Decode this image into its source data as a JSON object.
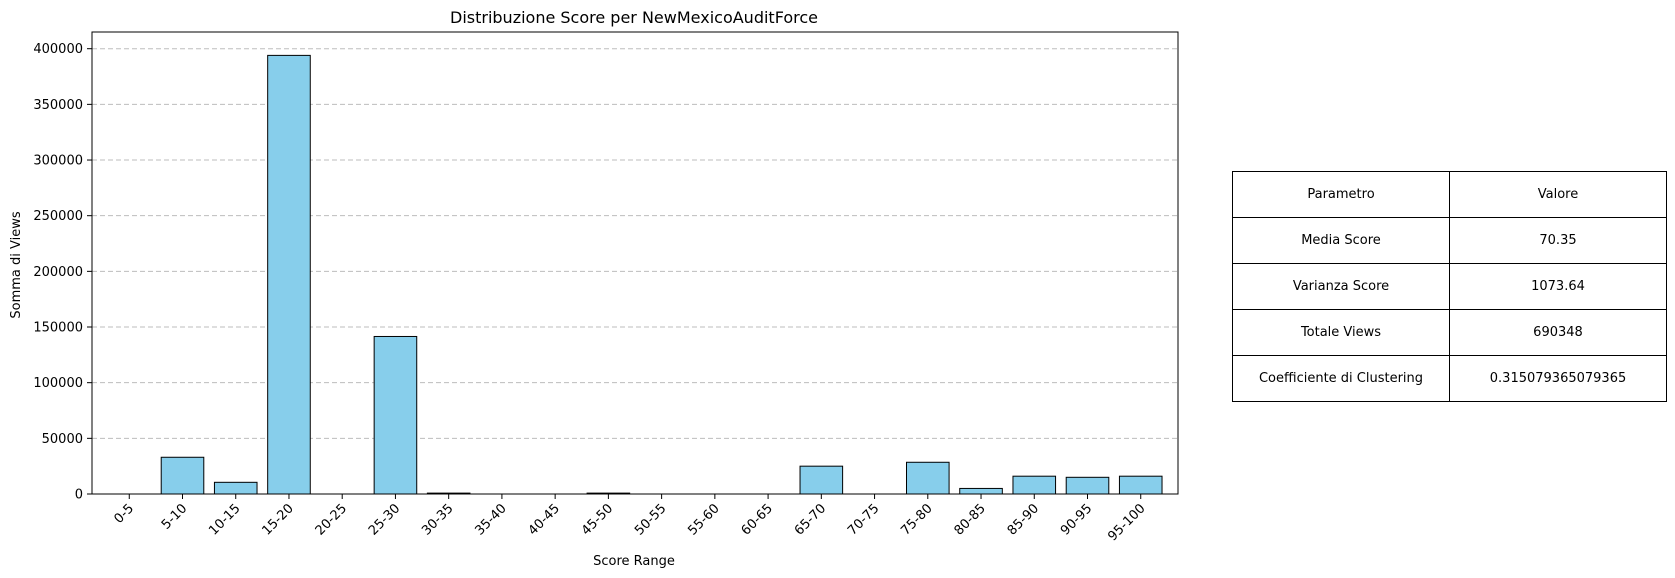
{
  "chart_data": {
    "type": "bar",
    "title": "Distribuzione Score per NewMexicoAuditForce",
    "xlabel": "Score Range",
    "ylabel": "Somma di Views",
    "categories": [
      "0-5",
      "5-10",
      "10-15",
      "15-20",
      "20-25",
      "25-30",
      "30-35",
      "35-40",
      "40-45",
      "45-50",
      "50-55",
      "55-60",
      "60-65",
      "65-70",
      "70-75",
      "75-80",
      "80-85",
      "85-90",
      "90-95",
      "95-100"
    ],
    "values": [
      0,
      33000,
      10500,
      394000,
      0,
      141500,
      800,
      0,
      0,
      800,
      0,
      0,
      0,
      25000,
      0,
      28500,
      5000,
      16000,
      15000,
      16000
    ],
    "ylim": [
      0,
      415000
    ],
    "yticks": [
      0,
      50000,
      100000,
      150000,
      200000,
      250000,
      300000,
      350000,
      400000
    ],
    "ytick_labels": [
      "0",
      "50000",
      "100000",
      "150000",
      "200000",
      "250000",
      "300000",
      "350000",
      "400000"
    ],
    "grid": "y-dashed",
    "bar_color": "#87ceeb",
    "edge_color": "#000000"
  },
  "table": {
    "headers": [
      "Parametro",
      "Valore"
    ],
    "rows": [
      [
        "Media Score",
        "70.35"
      ],
      [
        "Varianza Score",
        "1073.64"
      ],
      [
        "Totale Views",
        "690348"
      ],
      [
        "Coefficiente di Clustering",
        "0.315079365079365"
      ]
    ]
  }
}
